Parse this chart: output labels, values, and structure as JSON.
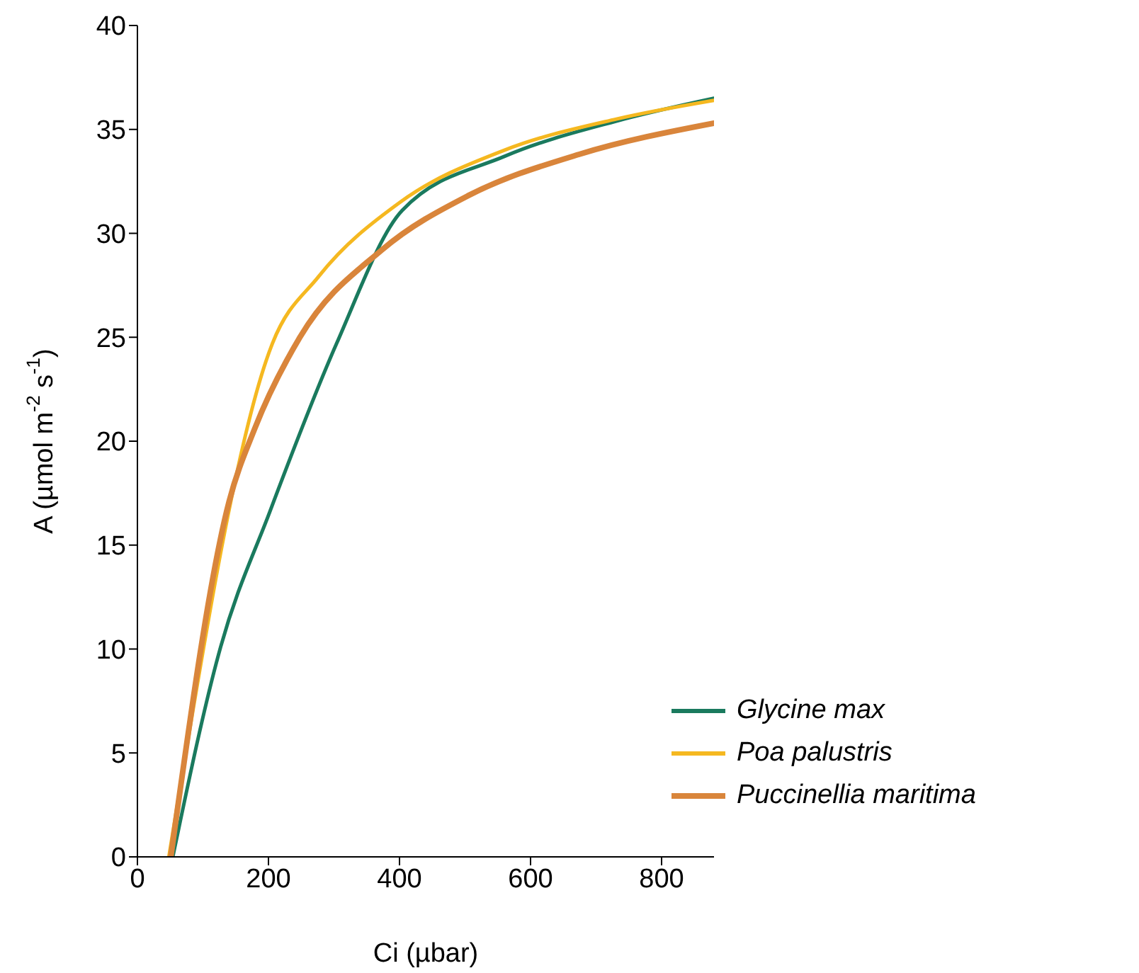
{
  "chart_data": {
    "type": "line",
    "xlabel": "Ci (µbar)",
    "ylabel": "A (µmol m$^{-2}$ s$^{-1}$)",
    "xlim": [
      0,
      880
    ],
    "xticks": [
      0,
      200,
      400,
      600,
      800
    ],
    "ylim": [
      0,
      40
    ],
    "yticks": [
      0,
      5,
      10,
      15,
      20,
      25,
      30,
      35,
      40
    ],
    "grid": false,
    "legend": "bottom right",
    "marker": "none",
    "line_style": "solid",
    "series": [
      {
        "name": "Glycine max",
        "color": "#1a7a5e",
        "x": [
          54,
          127,
          202,
          304,
          404,
          560,
          731,
          880
        ],
        "values": [
          0,
          10.1,
          16.6,
          24.7,
          31.1,
          33.7,
          35.4,
          36.5
        ]
      },
      {
        "name": "Poa palustris",
        "color": "#f5b820",
        "x": [
          48,
          206,
          276,
          401,
          560,
          731,
          880
        ],
        "values": [
          0,
          24.7,
          27.9,
          31.5,
          34.0,
          35.5,
          36.4
        ]
      },
      {
        "name": "Puccinellia maritima",
        "color": "#d9853b",
        "x": [
          51,
          140,
          179,
          248,
          373,
          504,
          674,
          880
        ],
        "values": [
          0,
          17.1,
          20.6,
          25.0,
          29.2,
          31.8,
          33.8,
          35.3
        ]
      }
    ]
  }
}
